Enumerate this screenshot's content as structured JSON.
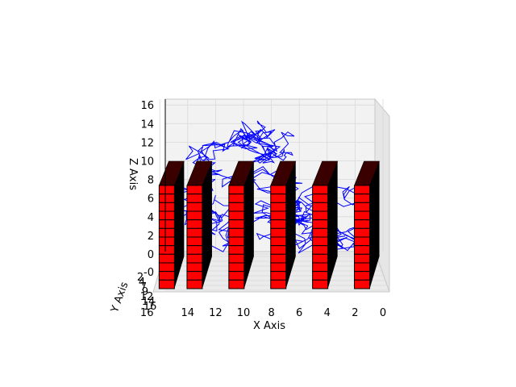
{
  "chart_data": {
    "type": "3d-bar-with-line",
    "title": "",
    "xlabel": "X Axis",
    "ylabel": "Y Axis",
    "zlabel": "Z Axis",
    "x_ticks": [
      "16",
      "14",
      "12",
      "10",
      "8",
      "6",
      "4",
      "2",
      "0"
    ],
    "z_ticks": [
      "16",
      "14",
      "12",
      "10",
      "8",
      "6",
      "4",
      "2",
      "0",
      "-0"
    ],
    "y_ticks": [
      "2",
      "4",
      "7",
      "9",
      "12",
      "14",
      "16"
    ],
    "xlim": [
      0,
      16.5
    ],
    "zlim": [
      -2,
      16.5
    ],
    "bars": {
      "color": "#ff0000",
      "edge_color": "#000000",
      "side_color": "#000000",
      "x_positions": [
        15.5,
        13.5,
        10.5,
        7.5,
        4.5,
        1.5
      ],
      "z_top": 7.5,
      "z_bottom": -2,
      "cube_count": 12
    },
    "walk": {
      "color": "#0000ff",
      "steps": 600,
      "z_range": [
        0,
        14.5
      ]
    },
    "colors": {
      "pane": "#f2f2f2",
      "grid": "#d9d9d9",
      "axis": "#000000"
    }
  }
}
